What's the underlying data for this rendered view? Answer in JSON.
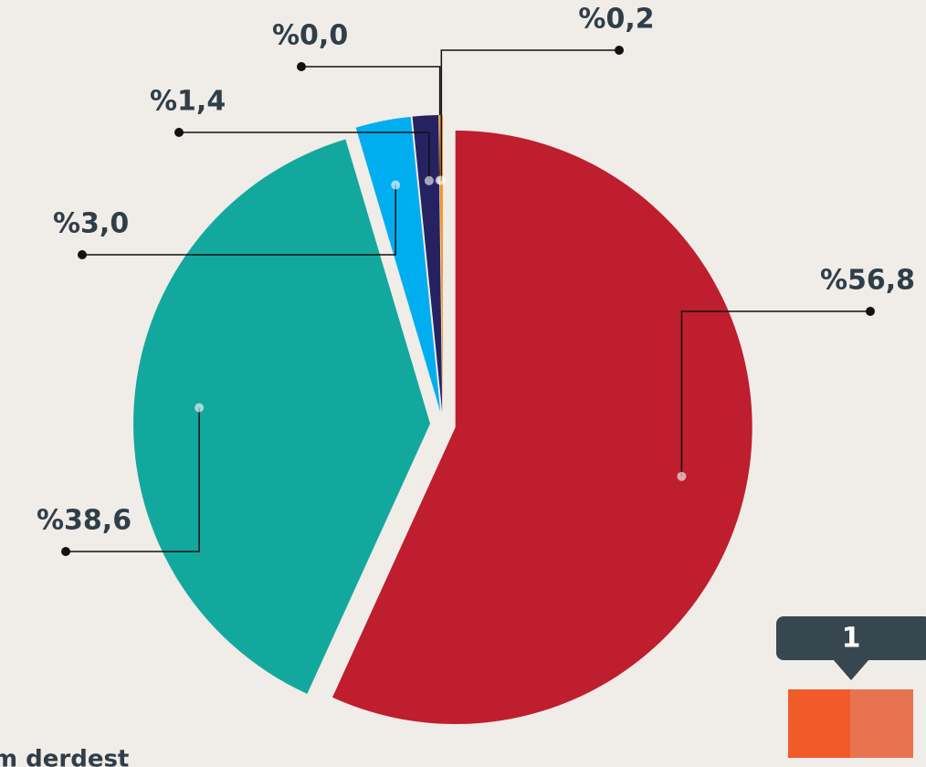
{
  "chart_data": {
    "type": "pie",
    "values": [
      56.8,
      38.6,
      3.0,
      1.4,
      0.0,
      0.2
    ],
    "value_labels": [
      "%56,8",
      "%38,6",
      "%3,0",
      "%1,4",
      "%0,0",
      "%0,2"
    ],
    "colors": [
      "#be1e2d",
      "#13a89e",
      "#00aeef",
      "#262262",
      "#f15a29",
      "#f7941d"
    ]
  },
  "badge": "1",
  "caption": "m derdest"
}
